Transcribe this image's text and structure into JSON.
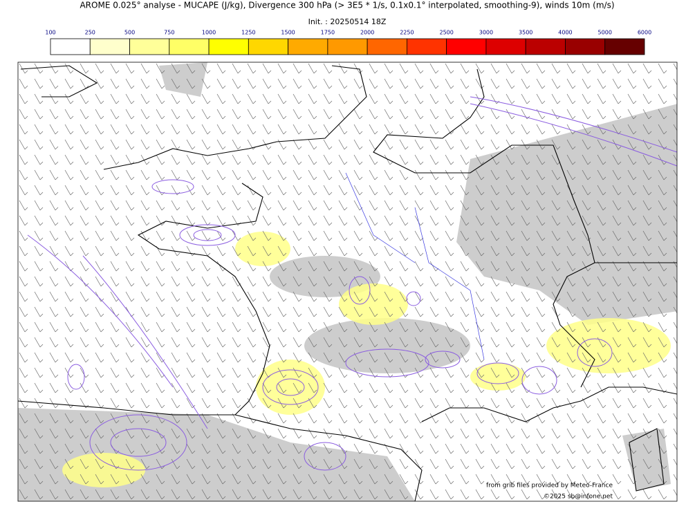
{
  "header": {
    "title": "AROME 0.025° analyse - MUCAPE (J/kg), Divergence 300 hPa (> 3E5 * 1/s, 0.1x0.1° interpolated, smoothing-9), winds 10m (m/s)",
    "init": "Init. : 20250514 18Z"
  },
  "colorbar": {
    "ticks": [
      100,
      250,
      500,
      750,
      1000,
      1250,
      1500,
      1750,
      2000,
      2250,
      2500,
      3000,
      3500,
      4000,
      5000,
      6000
    ],
    "colors": [
      "#ffffff",
      "#ffffcc",
      "#ffff99",
      "#ffff66",
      "#ffff00",
      "#ffd700",
      "#ffaa00",
      "#ff9900",
      "#ff6600",
      "#ff3300",
      "#ff0000",
      "#dd0000",
      "#bb0000",
      "#990000",
      "#660000"
    ]
  },
  "credits": {
    "source": "from grib files provided by Meteo-France",
    "copyright": "©2025 sb@infone.net"
  }
}
